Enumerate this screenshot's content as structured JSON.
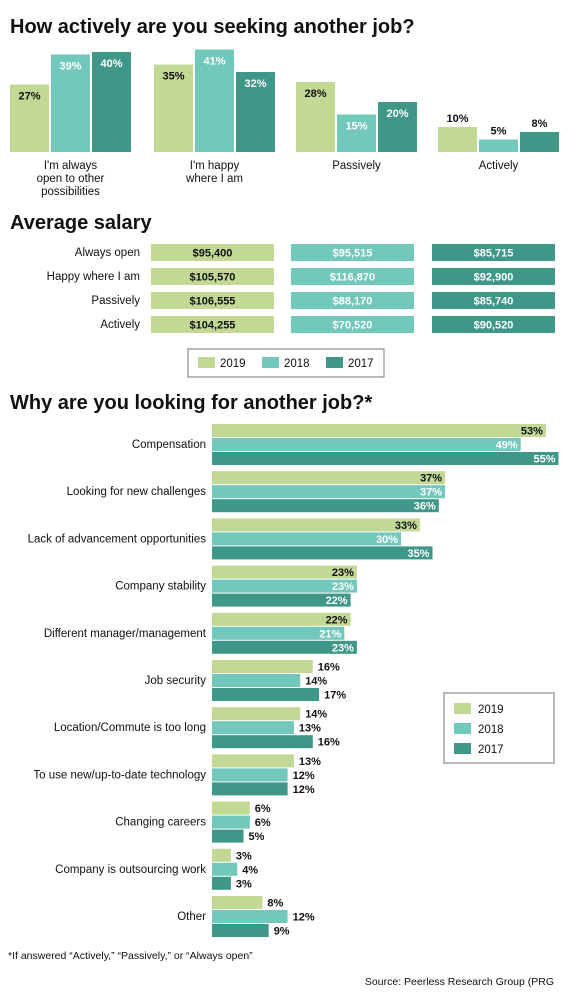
{
  "colors": {
    "2019": "#c2d895",
    "2018": "#72c8bb",
    "2017": "#3f9787"
  },
  "footnote": "*If answered “Actively,” “Passively,” or “Always open”",
  "source": "Source: Peerless Research Group (PRG",
  "chart_data": [
    {
      "type": "bar",
      "title": "How actively are you seeking another job?",
      "categories": [
        "I'm always open to other possibilities",
        "I'm happy where I am",
        "Passively",
        "Actively"
      ],
      "category_lines": [
        [
          "I'm always",
          "open to other",
          "possibilities"
        ],
        [
          "I'm happy",
          "where I am"
        ],
        [
          "Passively"
        ],
        [
          "Actively"
        ]
      ],
      "series": [
        {
          "name": "2019",
          "values": [
            27,
            35,
            28,
            10
          ],
          "labels": [
            "27%",
            "35%",
            "28%",
            "10%"
          ]
        },
        {
          "name": "2018",
          "values": [
            39,
            41,
            15,
            5
          ],
          "labels": [
            "39%",
            "41%",
            "15%",
            "5%"
          ]
        },
        {
          "name": "2017",
          "values": [
            40,
            32,
            20,
            8
          ],
          "labels": [
            "40%",
            "32%",
            "20%",
            "8%"
          ]
        }
      ]
    },
    {
      "type": "table",
      "title": "Average salary",
      "rows": [
        "Always open",
        "Happy where I am",
        "Passively",
        "Actively"
      ],
      "series": [
        {
          "name": "2019",
          "values": [
            "$95,400",
            "$105,570",
            "$106,555",
            "$104,255"
          ]
        },
        {
          "name": "2018",
          "values": [
            "$95,515",
            "$116,870",
            "$88,170",
            "$70,520"
          ]
        },
        {
          "name": "2017",
          "values": [
            "$85,715",
            "$92,900",
            "$85,740",
            "$90,520"
          ]
        }
      ],
      "legend": [
        "2019",
        "2018",
        "2017"
      ]
    },
    {
      "type": "bar",
      "orientation": "horizontal",
      "title": "Why are you looking for another job?*",
      "categories": [
        "Compensation",
        "Looking for new challenges",
        "Lack of advancement opportunities",
        "Company stability",
        "Different manager/management",
        "Job security",
        "Location/Commute is too long",
        "To use new/up-to-date technology",
        "Changing careers",
        "Company is outsourcing work",
        "Other"
      ],
      "series": [
        {
          "name": "2019",
          "values": [
            53,
            37,
            33,
            23,
            22,
            16,
            14,
            13,
            6,
            3,
            8
          ],
          "labels": [
            "53%",
            "37%",
            "33%",
            "23%",
            "22%",
            "16%",
            "14%",
            "13%",
            "6%",
            "3%",
            "8%"
          ]
        },
        {
          "name": "2018",
          "values": [
            49,
            37,
            30,
            23,
            21,
            14,
            13,
            12,
            6,
            4,
            12
          ],
          "labels": [
            "49%",
            "37%",
            "30%",
            "23%",
            "21%",
            "14%",
            "13%",
            "12%",
            "6%",
            "4%",
            "12%"
          ]
        },
        {
          "name": "2017",
          "values": [
            55,
            36,
            35,
            22,
            23,
            17,
            16,
            12,
            5,
            3,
            9
          ],
          "labels": [
            "55%",
            "36%",
            "35%",
            "22%",
            "23%",
            "17%",
            "16%",
            "12%",
            "5%",
            "3%",
            "9%"
          ]
        }
      ],
      "legend": [
        "2019",
        "2018",
        "2017"
      ]
    }
  ]
}
